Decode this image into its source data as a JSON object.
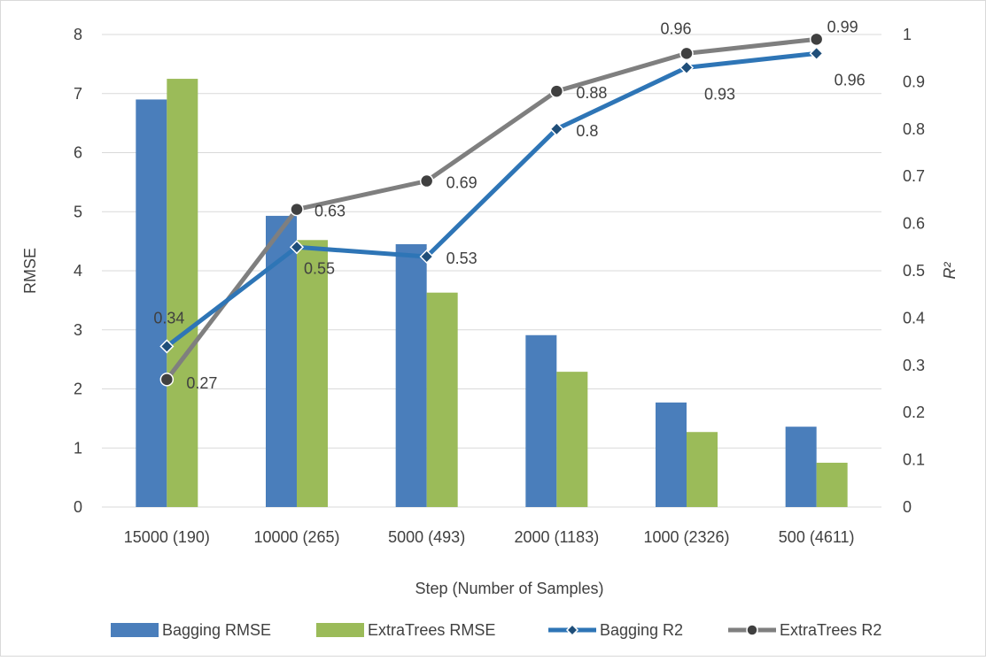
{
  "chart_data": {
    "type": "bar",
    "categories": [
      "15000 (190)",
      "10000 (265)",
      "5000 (493)",
      "2000 (1183)",
      "1000 (2326)",
      "500 (4611)"
    ],
    "xlabel": "Step (Number of Samples)",
    "ylabel": "RMSE",
    "y2label": "R²",
    "ylim": [
      0,
      8
    ],
    "y2lim": [
      0,
      1
    ],
    "yticks": [
      "0",
      "1",
      "2",
      "3",
      "4",
      "5",
      "6",
      "7",
      "8"
    ],
    "y2ticks": [
      "0",
      "0.1",
      "0.2",
      "0.3",
      "0.4",
      "0.5",
      "0.6",
      "0.7",
      "0.8",
      "0.9",
      "1"
    ],
    "grid": true,
    "legend_position": "bottom",
    "series": [
      {
        "name": "Bagging RMSE",
        "type": "bar",
        "axis": "left",
        "color": "#4a7ebb",
        "values": [
          6.9,
          4.93,
          4.45,
          2.91,
          1.77,
          1.36
        ]
      },
      {
        "name": "ExtraTrees RMSE",
        "type": "bar",
        "axis": "left",
        "color": "#9bbb59",
        "values": [
          7.25,
          4.52,
          3.63,
          2.29,
          1.27,
          0.75
        ]
      },
      {
        "name": "Bagging R2",
        "type": "line",
        "axis": "right",
        "color": "#2e75b6",
        "marker": "diamond",
        "values": [
          0.34,
          0.55,
          0.53,
          0.8,
          0.93,
          0.96
        ],
        "labels": [
          "0.34",
          "0.55",
          "0.53",
          "0.8",
          "0.93",
          "0.96"
        ]
      },
      {
        "name": "ExtraTrees R2",
        "type": "line",
        "axis": "right",
        "color": "#7f7f7f",
        "marker": "circle",
        "values": [
          0.27,
          0.63,
          0.69,
          0.88,
          0.96,
          0.99
        ],
        "labels": [
          "0.27",
          "0.63",
          "0.69",
          "0.88",
          "0.96",
          "0.99"
        ]
      }
    ]
  }
}
